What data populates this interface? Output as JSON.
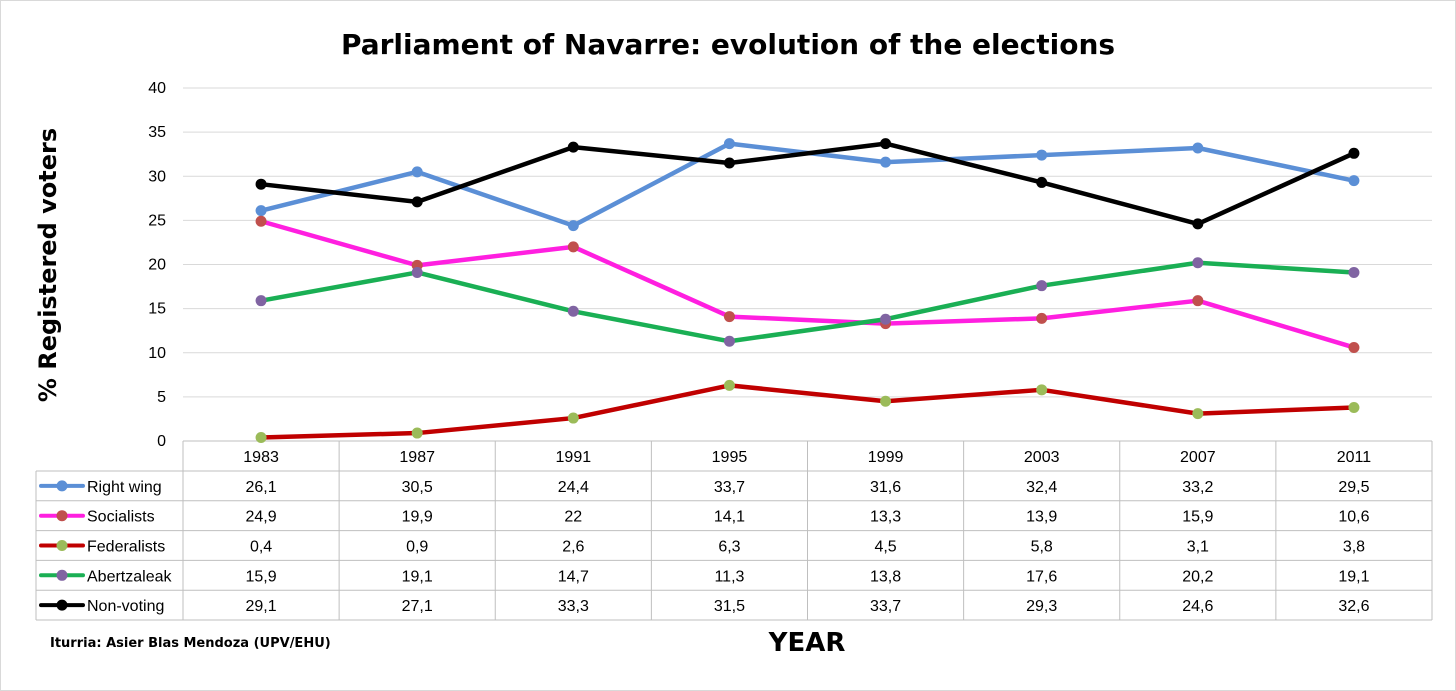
{
  "chart_data": {
    "type": "line",
    "title": "Parliament of Navarre: evolution of the elections",
    "xlabel": "YEAR",
    "ylabel": "% Registered voters",
    "ylim": [
      0,
      40
    ],
    "yticks": [
      0,
      5,
      10,
      15,
      20,
      25,
      30,
      35,
      40
    ],
    "grid": true,
    "legend": "data-table-left",
    "source_note": "Iturria: Asier Blas Mendoza (UPV/EHU)",
    "categories": [
      "1983",
      "1987",
      "1991",
      "1995",
      "1999",
      "2003",
      "2007",
      "2011"
    ],
    "series": [
      {
        "name": "Right wing",
        "line_color": "#5b8fd6",
        "marker_color": "#5b8fd6",
        "values": [
          26.1,
          30.5,
          24.4,
          33.7,
          31.6,
          32.4,
          33.2,
          29.5
        ],
        "labels": [
          "26,1",
          "30,5",
          "24,4",
          "33,7",
          "31,6",
          "32,4",
          "33,2",
          "29,5"
        ]
      },
      {
        "name": "Socialists",
        "line_color": "#ff1fe0",
        "marker_color": "#c0504d",
        "values": [
          24.9,
          19.9,
          22,
          14.1,
          13.3,
          13.9,
          15.9,
          10.6
        ],
        "labels": [
          "24,9",
          "19,9",
          "22",
          "14,1",
          "13,3",
          "13,9",
          "15,9",
          "10,6"
        ]
      },
      {
        "name": "Federalists",
        "line_color": "#c00000",
        "marker_color": "#9bbb59",
        "values": [
          0.4,
          0.9,
          2.6,
          6.3,
          4.5,
          5.8,
          3.1,
          3.8
        ],
        "labels": [
          "0,4",
          "0,9",
          "2,6",
          "6,3",
          "4,5",
          "5,8",
          "3,1",
          "3,8"
        ]
      },
      {
        "name": "Abertzaleak",
        "line_color": "#1aaf54",
        "marker_color": "#8064a2",
        "values": [
          15.9,
          19.1,
          14.7,
          11.3,
          13.8,
          17.6,
          20.2,
          19.1
        ],
        "labels": [
          "15,9",
          "19,1",
          "14,7",
          "11,3",
          "13,8",
          "17,6",
          "20,2",
          "19,1"
        ]
      },
      {
        "name": "Non-voting",
        "line_color": "#000000",
        "marker_color": "#000000",
        "values": [
          29.1,
          27.1,
          33.3,
          31.5,
          33.7,
          29.3,
          24.6,
          32.6
        ],
        "labels": [
          "29,1",
          "27,1",
          "33,3",
          "31,5",
          "33,7",
          "29,3",
          "24,6",
          "32,6"
        ]
      }
    ]
  }
}
